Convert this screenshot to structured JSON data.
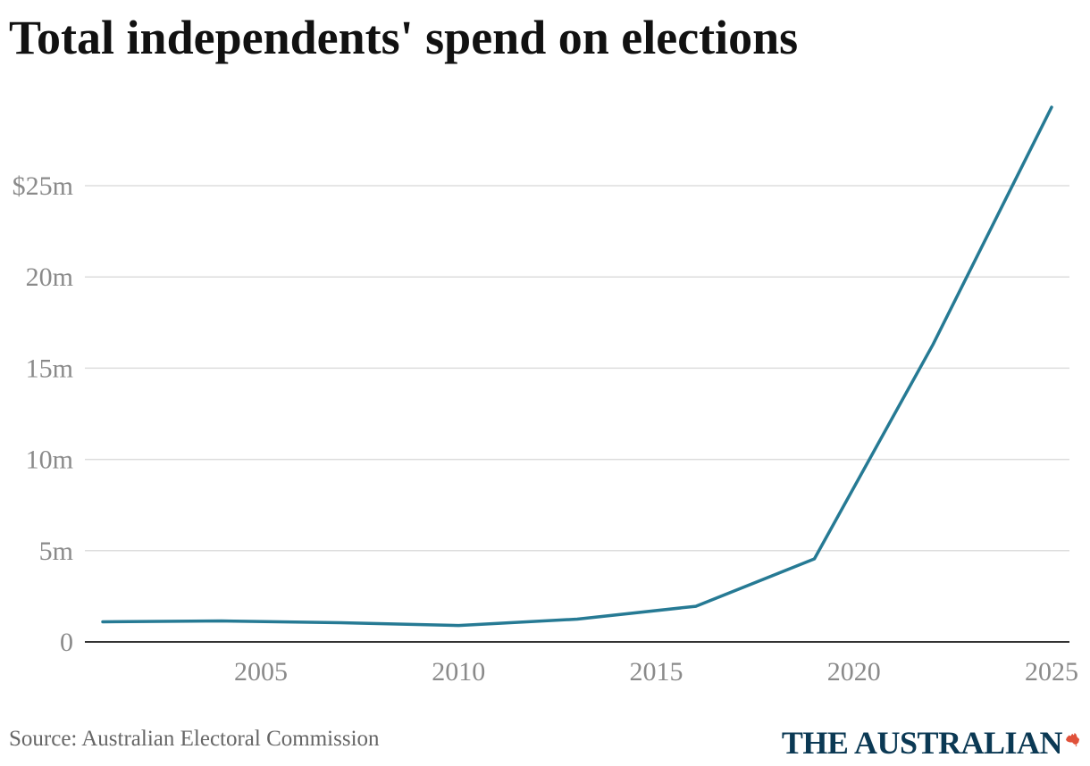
{
  "title": "Total independents' spend on elections",
  "source": "Source: Australian Electoral Commission",
  "brand": {
    "name": "THE AUSTRALIAN",
    "logo_icon": "australia-map-icon",
    "logo_color": "#e0513a"
  },
  "colors": {
    "line": "#267a94",
    "grid": "#dddddd",
    "axis": "#333333",
    "tick_text": "#8a8a8a"
  },
  "chart_data": {
    "type": "line",
    "title": "Total independents' spend on elections",
    "xlabel": "",
    "ylabel": "",
    "xlim": [
      2001,
      2025
    ],
    "ylim": [
      0,
      30
    ],
    "x_ticks": [
      {
        "value": 2005,
        "label": "2005"
      },
      {
        "value": 2010,
        "label": "2010"
      },
      {
        "value": 2015,
        "label": "2015"
      },
      {
        "value": 2020,
        "label": "2020"
      },
      {
        "value": 2025,
        "label": "2025"
      }
    ],
    "y_ticks": [
      {
        "value": 0,
        "label": "0"
      },
      {
        "value": 5,
        "label": "5m"
      },
      {
        "value": 10,
        "label": "10m"
      },
      {
        "value": 15,
        "label": "15m"
      },
      {
        "value": 20,
        "label": "20m"
      },
      {
        "value": 25,
        "label": "$25m"
      }
    ],
    "grid": true,
    "legend": "none",
    "series": [
      {
        "x": [
          2001,
          2004,
          2007,
          2010,
          2013,
          2016,
          2019,
          2022,
          2025
        ],
        "values": [
          1.1,
          1.15,
          1.05,
          0.9,
          1.25,
          1.95,
          4.55,
          16.3,
          29.3
        ]
      }
    ]
  }
}
